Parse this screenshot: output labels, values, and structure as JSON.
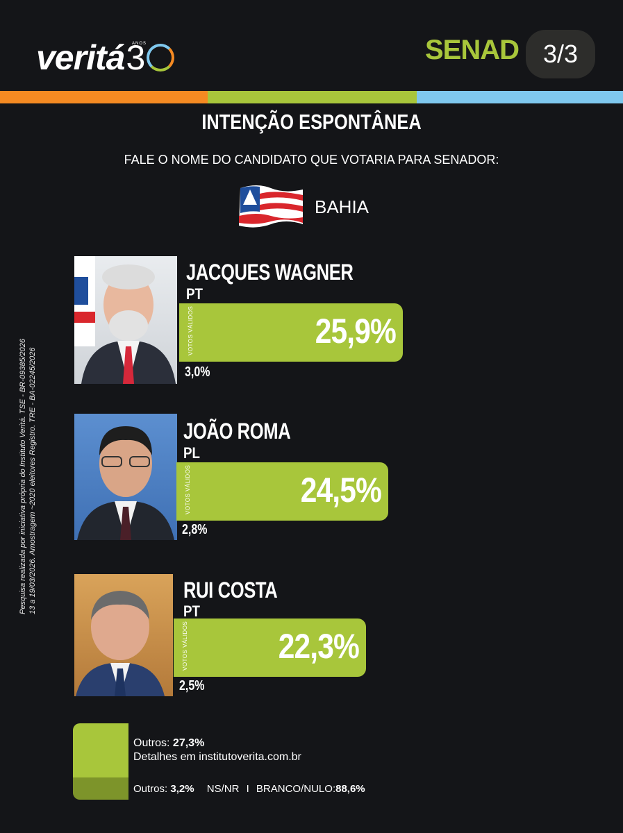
{
  "header": {
    "logo_word": "veritá",
    "logo_number": "3",
    "logo_sub": "ANOS",
    "section": "SENAD",
    "page_indicator": "3/3"
  },
  "colors": {
    "orange": "#f58a22",
    "green": "#a8c63b",
    "blue": "#7fc8ee",
    "background": "#141518",
    "dark_green": "#7d942a"
  },
  "title": "INTENÇÃO ESPONTÂNEA",
  "subtitle": "FALE O NOME DO CANDIDATO QUE VOTARIA PARA SENADOR:",
  "state": "BAHIA",
  "side_note": {
    "line1": "Pesquisa realizada por iniciativa própria do Instituto Veritá. TSE - BR-09385/2026",
    "line2": "13 a 19/03/2026. Amostragem ~2020 eleitores Registro. TRE - BA-02245/2026"
  },
  "chart_data": {
    "type": "bar",
    "title": "INTENÇÃO ESPONTÂNEA",
    "categories": [
      "JACQUES WAGNER",
      "JOÃO ROMA",
      "RUI COSTA"
    ],
    "parties": [
      "PT",
      "PL",
      "PT"
    ],
    "series": [
      {
        "name": "VOTOS VÁLIDOS",
        "values": [
          25.9,
          24.5,
          22.3
        ]
      },
      {
        "values": [
          3.0,
          2.8,
          2.5
        ]
      }
    ],
    "labels_valid": [
      "25,9%",
      "24,5%",
      "22,3%"
    ],
    "labels_total": [
      "3,0%",
      "2,8%",
      "2,5%"
    ],
    "bar_tag": "VOTOS VÁLIDOS"
  },
  "footer": {
    "outros_valid_label": "Outros:",
    "outros_valid_value": "27,3%",
    "details": "Detalhes em institutoverita.com.br",
    "outros_total_label": "Outros:",
    "outros_total_value": "3,2%",
    "nsnr_label": "NS/NR",
    "separator": "I",
    "branco_label": "BRANCO/NULO:",
    "branco_value": "88,6%"
  }
}
